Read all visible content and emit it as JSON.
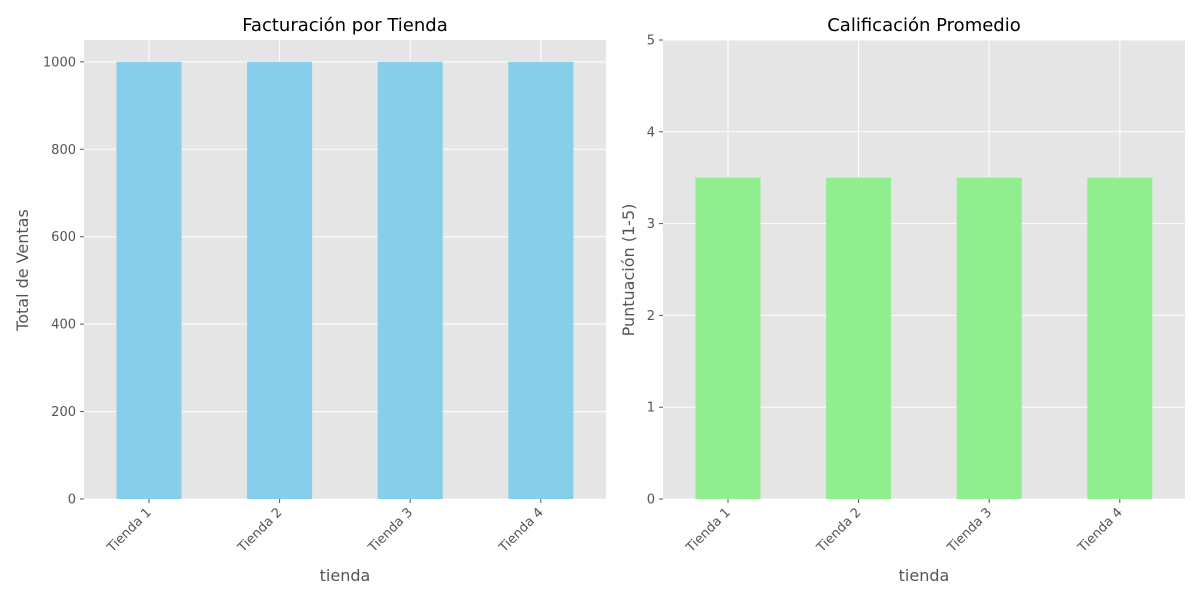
{
  "chart_data": [
    {
      "type": "bar",
      "title": "Facturación por Tienda",
      "xlabel": "tienda",
      "ylabel": "Total de Ventas",
      "categories": [
        "Tienda 1",
        "Tienda 2",
        "Tienda 3",
        "Tienda 4"
      ],
      "values": [
        1000,
        1000,
        1000,
        1000
      ],
      "ylim": [
        0,
        1050
      ],
      "yticks": [
        0,
        200,
        400,
        600,
        800,
        1000
      ],
      "grid": true,
      "color": "#87CEEB",
      "background": "#E5E5E5"
    },
    {
      "type": "bar",
      "title": "Calificación Promedio",
      "xlabel": "tienda",
      "ylabel": "Puntuación (1-5)",
      "categories": [
        "Tienda 1",
        "Tienda 2",
        "Tienda 3",
        "Tienda 4"
      ],
      "values": [
        3.5,
        3.5,
        3.5,
        3.5
      ],
      "ylim": [
        0,
        5
      ],
      "yticks": [
        0,
        1,
        2,
        3,
        4,
        5
      ],
      "grid": true,
      "color": "#90EE90",
      "background": "#E5E5E5"
    }
  ]
}
